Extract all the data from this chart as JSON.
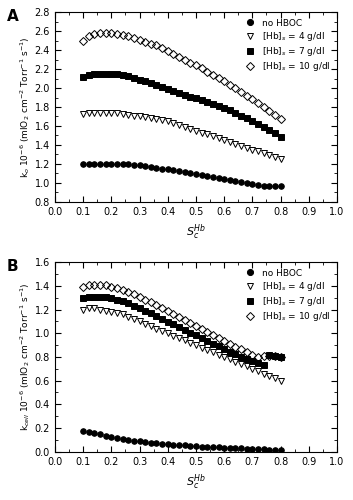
{
  "panel_A": {
    "title": "A",
    "ylabel": "k$_o$ 10$^{-6}$ (mlO$_2$ cm$^{-2}$ Torr$^{-1}$ s$^{-1}$)",
    "xlabel": "$S^{Hb}_{c}$",
    "ylim": [
      0.8,
      2.8
    ],
    "xlim": [
      0.0,
      1.0
    ],
    "yticks": [
      0.8,
      1.0,
      1.2,
      1.4,
      1.6,
      1.8,
      2.0,
      2.2,
      2.4,
      2.6,
      2.8
    ],
    "xticks": [
      0.0,
      0.1,
      0.2,
      0.3,
      0.4,
      0.5,
      0.6,
      0.7,
      0.8,
      0.9,
      1.0
    ],
    "series": [
      {
        "label": "no HBOC",
        "marker": "o",
        "fillstyle": "full",
        "x": [
          0.1,
          0.12,
          0.14,
          0.16,
          0.18,
          0.2,
          0.22,
          0.24,
          0.26,
          0.28,
          0.3,
          0.32,
          0.34,
          0.36,
          0.38,
          0.4,
          0.42,
          0.44,
          0.46,
          0.48,
          0.5,
          0.52,
          0.54,
          0.56,
          0.58,
          0.6,
          0.62,
          0.64,
          0.66,
          0.68,
          0.7,
          0.72,
          0.74,
          0.76,
          0.78,
          0.8
        ],
        "y": [
          1.2,
          1.2,
          1.2,
          1.2,
          1.2,
          1.2,
          1.2,
          1.2,
          1.2,
          1.19,
          1.19,
          1.18,
          1.17,
          1.16,
          1.15,
          1.14,
          1.13,
          1.12,
          1.11,
          1.1,
          1.09,
          1.08,
          1.07,
          1.06,
          1.05,
          1.04,
          1.03,
          1.02,
          1.01,
          1.0,
          0.99,
          0.98,
          0.97,
          0.97,
          0.97,
          0.97
        ]
      },
      {
        "label": "[Hb]$_s$ = 4 g/dl",
        "marker": "v",
        "fillstyle": "none",
        "x": [
          0.1,
          0.12,
          0.14,
          0.16,
          0.18,
          0.2,
          0.22,
          0.24,
          0.26,
          0.28,
          0.3,
          0.32,
          0.34,
          0.36,
          0.38,
          0.4,
          0.42,
          0.44,
          0.46,
          0.48,
          0.5,
          0.52,
          0.54,
          0.56,
          0.58,
          0.6,
          0.62,
          0.64,
          0.66,
          0.68,
          0.7,
          0.72,
          0.74,
          0.76,
          0.78,
          0.8
        ],
        "y": [
          1.73,
          1.74,
          1.74,
          1.74,
          1.74,
          1.74,
          1.74,
          1.73,
          1.72,
          1.71,
          1.7,
          1.69,
          1.68,
          1.67,
          1.66,
          1.65,
          1.63,
          1.61,
          1.59,
          1.57,
          1.55,
          1.53,
          1.51,
          1.49,
          1.47,
          1.45,
          1.43,
          1.41,
          1.39,
          1.37,
          1.35,
          1.33,
          1.31,
          1.29,
          1.27,
          1.25
        ]
      },
      {
        "label": "[Hb]$_s$ = 7 g/dl",
        "marker": "s",
        "fillstyle": "full",
        "x": [
          0.1,
          0.12,
          0.14,
          0.16,
          0.18,
          0.2,
          0.22,
          0.24,
          0.26,
          0.28,
          0.3,
          0.32,
          0.34,
          0.36,
          0.38,
          0.4,
          0.42,
          0.44,
          0.46,
          0.48,
          0.5,
          0.52,
          0.54,
          0.56,
          0.58,
          0.6,
          0.62,
          0.64,
          0.66,
          0.68,
          0.7,
          0.72,
          0.74,
          0.76,
          0.78,
          0.8
        ],
        "y": [
          2.12,
          2.14,
          2.15,
          2.15,
          2.15,
          2.15,
          2.15,
          2.14,
          2.13,
          2.11,
          2.09,
          2.07,
          2.05,
          2.03,
          2.01,
          1.99,
          1.97,
          1.95,
          1.93,
          1.91,
          1.89,
          1.87,
          1.85,
          1.83,
          1.81,
          1.79,
          1.77,
          1.74,
          1.71,
          1.68,
          1.65,
          1.62,
          1.59,
          1.56,
          1.52,
          1.48
        ]
      },
      {
        "label": "[Hb]$_s$ = 10 g/dl",
        "marker": "D",
        "fillstyle": "none",
        "x": [
          0.1,
          0.12,
          0.14,
          0.16,
          0.18,
          0.2,
          0.22,
          0.24,
          0.26,
          0.28,
          0.3,
          0.32,
          0.34,
          0.36,
          0.38,
          0.4,
          0.42,
          0.44,
          0.46,
          0.48,
          0.5,
          0.52,
          0.54,
          0.56,
          0.58,
          0.6,
          0.62,
          0.64,
          0.66,
          0.68,
          0.7,
          0.72,
          0.74,
          0.76,
          0.78,
          0.8
        ],
        "y": [
          2.5,
          2.55,
          2.57,
          2.58,
          2.58,
          2.58,
          2.57,
          2.56,
          2.55,
          2.53,
          2.51,
          2.49,
          2.47,
          2.45,
          2.42,
          2.39,
          2.36,
          2.33,
          2.3,
          2.27,
          2.24,
          2.21,
          2.17,
          2.14,
          2.11,
          2.07,
          2.03,
          2.0,
          1.96,
          1.92,
          1.88,
          1.84,
          1.8,
          1.76,
          1.72,
          1.67
        ]
      }
    ]
  },
  "panel_B": {
    "title": "B",
    "ylabel": "k$_{cell}$ 10$^{-6}$ (mlO$_2$ cm$^{-2}$ Torr$^{-1}$ s$^{-1}$)",
    "xlabel": "$S^{Hb}_{c}$",
    "ylim": [
      0.0,
      1.6
    ],
    "xlim": [
      0.0,
      1.0
    ],
    "yticks": [
      0.0,
      0.2,
      0.4,
      0.6,
      0.8,
      1.0,
      1.2,
      1.4,
      1.6
    ],
    "xticks": [
      0.0,
      0.1,
      0.2,
      0.3,
      0.4,
      0.5,
      0.6,
      0.7,
      0.8,
      0.9,
      1.0
    ],
    "series": [
      {
        "label": "no HBOC",
        "marker": "o",
        "fillstyle": "full",
        "x": [
          0.1,
          0.12,
          0.14,
          0.16,
          0.18,
          0.2,
          0.22,
          0.24,
          0.26,
          0.28,
          0.3,
          0.32,
          0.34,
          0.36,
          0.38,
          0.4,
          0.42,
          0.44,
          0.46,
          0.48,
          0.5,
          0.52,
          0.54,
          0.56,
          0.58,
          0.6,
          0.62,
          0.64,
          0.66,
          0.68,
          0.7,
          0.72,
          0.74,
          0.76,
          0.78,
          0.8
        ],
        "y": [
          0.175,
          0.165,
          0.155,
          0.145,
          0.135,
          0.125,
          0.115,
          0.107,
          0.1,
          0.093,
          0.087,
          0.081,
          0.076,
          0.071,
          0.067,
          0.063,
          0.059,
          0.055,
          0.052,
          0.049,
          0.046,
          0.043,
          0.04,
          0.038,
          0.036,
          0.034,
          0.032,
          0.03,
          0.028,
          0.026,
          0.024,
          0.022,
          0.02,
          0.018,
          0.017,
          0.015
        ]
      },
      {
        "label": "[Hb]$_s$ = 4 g/dl",
        "marker": "v",
        "fillstyle": "none",
        "x": [
          0.1,
          0.12,
          0.14,
          0.16,
          0.18,
          0.2,
          0.22,
          0.24,
          0.26,
          0.28,
          0.3,
          0.32,
          0.34,
          0.36,
          0.38,
          0.4,
          0.42,
          0.44,
          0.46,
          0.48,
          0.5,
          0.52,
          0.54,
          0.56,
          0.58,
          0.6,
          0.62,
          0.64,
          0.66,
          0.68,
          0.7,
          0.72,
          0.74,
          0.76,
          0.78,
          0.8
        ],
        "y": [
          1.2,
          1.21,
          1.21,
          1.2,
          1.19,
          1.18,
          1.17,
          1.16,
          1.14,
          1.12,
          1.1,
          1.08,
          1.06,
          1.04,
          1.02,
          1.0,
          0.98,
          0.96,
          0.94,
          0.92,
          0.9,
          0.88,
          0.86,
          0.84,
          0.82,
          0.8,
          0.78,
          0.76,
          0.74,
          0.72,
          0.7,
          0.68,
          0.66,
          0.64,
          0.62,
          0.6
        ]
      },
      {
        "label": "[Hb]$_s$ = 7 g/dl",
        "marker": "s",
        "fillstyle": "full",
        "x": [
          0.1,
          0.12,
          0.14,
          0.16,
          0.18,
          0.2,
          0.22,
          0.24,
          0.26,
          0.28,
          0.3,
          0.32,
          0.34,
          0.36,
          0.38,
          0.4,
          0.42,
          0.44,
          0.46,
          0.48,
          0.5,
          0.52,
          0.54,
          0.56,
          0.58,
          0.6,
          0.62,
          0.64,
          0.66,
          0.68,
          0.7,
          0.72,
          0.74,
          0.76,
          0.78,
          0.8
        ],
        "y": [
          1.295,
          1.305,
          1.31,
          1.31,
          1.305,
          1.295,
          1.283,
          1.27,
          1.253,
          1.233,
          1.212,
          1.19,
          1.168,
          1.145,
          1.122,
          1.099,
          1.076,
          1.052,
          1.029,
          1.006,
          0.983,
          0.96,
          0.937,
          0.914,
          0.891,
          0.868,
          0.846,
          0.824,
          0.804,
          0.784,
          0.765,
          0.748,
          0.732,
          0.818,
          0.81,
          0.803
        ]
      },
      {
        "label": "[Hb]$_s$ = 10 g/dl",
        "marker": "D",
        "fillstyle": "none",
        "x": [
          0.1,
          0.12,
          0.14,
          0.16,
          0.18,
          0.2,
          0.22,
          0.24,
          0.26,
          0.28,
          0.3,
          0.32,
          0.34,
          0.36,
          0.38,
          0.4,
          0.42,
          0.44,
          0.46,
          0.48,
          0.5,
          0.52,
          0.54,
          0.56,
          0.58,
          0.6,
          0.62,
          0.64,
          0.66,
          0.68,
          0.7,
          0.72,
          0.74,
          0.76,
          0.78,
          0.8
        ],
        "y": [
          1.395,
          1.405,
          1.41,
          1.41,
          1.405,
          1.395,
          1.383,
          1.368,
          1.35,
          1.33,
          1.308,
          1.285,
          1.262,
          1.238,
          1.213,
          1.188,
          1.163,
          1.138,
          1.113,
          1.088,
          1.063,
          1.038,
          1.013,
          0.988,
          0.963,
          0.938,
          0.913,
          0.888,
          0.865,
          0.842,
          0.82,
          0.8,
          0.81,
          0.81,
          0.805,
          0.8
        ]
      }
    ]
  },
  "figure_bg": "#ffffff",
  "axes_bg": "#ffffff",
  "markersize": 4,
  "legend_fontsize": 6.5
}
